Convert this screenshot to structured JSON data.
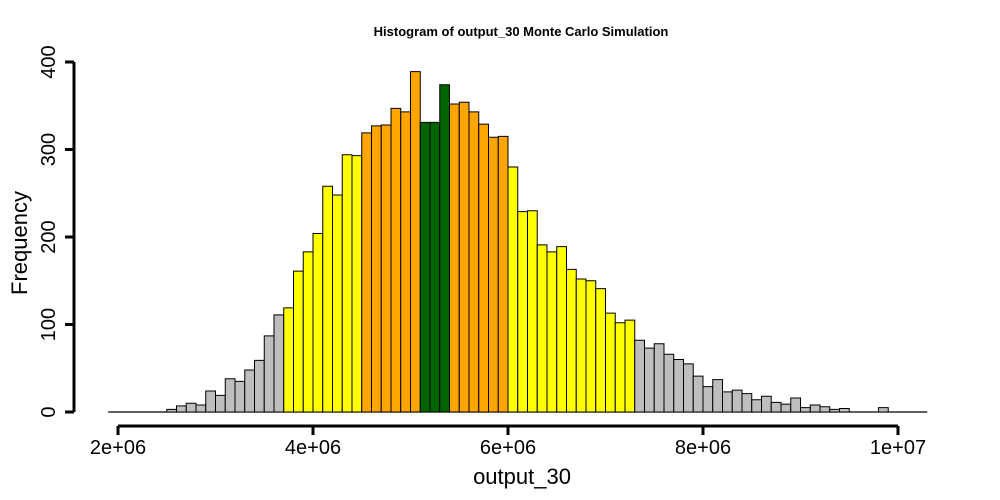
{
  "chart_data": {
    "type": "bar",
    "title": "Histogram of  output_30  Monte Carlo Simulation",
    "xlabel": "output_30",
    "ylabel": "Frequency",
    "xlim": [
      2000000,
      10000000
    ],
    "ylim": [
      0,
      400
    ],
    "x_ticks": [
      2000000,
      4000000,
      6000000,
      8000000,
      10000000
    ],
    "x_tick_labels": [
      "2e+06",
      "4e+06",
      "6e+06",
      "8e+06",
      "1e+07"
    ],
    "y_ticks": [
      0,
      100,
      200,
      300,
      400
    ],
    "y_tick_labels": [
      "0",
      "100",
      "200",
      "300",
      "400"
    ],
    "grid": false,
    "legend": "none",
    "bin_width": 100000,
    "bin_start": 2500000,
    "values": [
      3,
      7,
      10,
      8,
      24,
      19,
      38,
      35,
      48,
      59,
      87,
      111,
      119,
      161,
      183,
      204,
      258,
      248,
      294,
      293,
      319,
      327,
      328,
      347,
      343,
      389,
      331,
      331,
      374,
      352,
      354,
      343,
      329,
      314,
      315,
      280,
      229,
      230,
      191,
      183,
      189,
      163,
      152,
      150,
      141,
      113,
      102,
      105,
      82,
      73,
      78,
      66,
      60,
      55,
      41,
      29,
      37,
      23,
      25,
      21,
      14,
      18,
      11,
      9,
      16,
      5,
      8,
      6,
      3,
      4,
      0,
      0,
      0,
      5
    ],
    "band_colors": {
      "tail": "#bebebe",
      "outer": "#ffff00",
      "inner": "#ffa500",
      "center": "#006400"
    },
    "band_breaks": [
      3700000,
      4500000,
      5100000,
      5400000,
      6000000,
      7300000
    ]
  }
}
